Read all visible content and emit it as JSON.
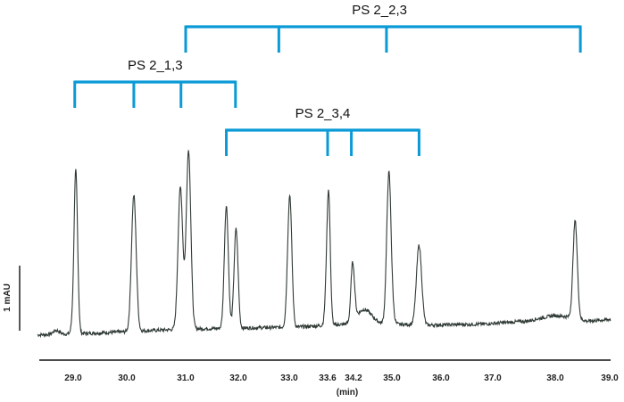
{
  "chart_data": {
    "type": "line",
    "title": "",
    "xlabel": "(min)",
    "ylabel": "",
    "xlim": [
      28.4,
      39.0
    ],
    "ylim": [
      0,
      1
    ],
    "grid": false,
    "x_ticks": [
      "29.0",
      "30.0",
      "31.0",
      "32.0",
      "33.0",
      "33.6",
      "34.2",
      "35.0",
      "36.0",
      "37.0",
      "38.0",
      "39.0"
    ],
    "x_tick_values": [
      28.97,
      30.01,
      31.01,
      31.93,
      32.86,
      33.6,
      34.2,
      34.98,
      35.83,
      36.71,
      37.82,
      38.97
    ],
    "scale_bar": {
      "label": "1 mAU"
    },
    "line_color": "#2f3a34",
    "bracket_color": "#0a9ad6",
    "baseline": [
      [
        28.4,
        0.02
      ],
      [
        29.5,
        0.03
      ],
      [
        31.0,
        0.05
      ],
      [
        33.0,
        0.06
      ],
      [
        34.4,
        0.08
      ],
      [
        35.6,
        0.07
      ],
      [
        36.5,
        0.075
      ],
      [
        37.3,
        0.09
      ],
      [
        37.8,
        0.12
      ],
      [
        38.2,
        0.11
      ],
      [
        38.5,
        0.09
      ],
      [
        39.0,
        0.1
      ]
    ],
    "peaks": [
      {
        "x": 28.7,
        "h": 0.02,
        "w": 0.05
      },
      {
        "x": 29.02,
        "h": 0.84,
        "w": 0.035
      },
      {
        "x": 30.13,
        "h": 0.7,
        "w": 0.04
      },
      {
        "x": 30.92,
        "h": 0.73,
        "w": 0.04
      },
      {
        "x": 31.06,
        "h": 0.92,
        "w": 0.04
      },
      {
        "x": 31.72,
        "h": 0.63,
        "w": 0.035
      },
      {
        "x": 31.89,
        "h": 0.51,
        "w": 0.035
      },
      {
        "x": 32.87,
        "h": 0.68,
        "w": 0.04
      },
      {
        "x": 33.62,
        "h": 0.7,
        "w": 0.04
      },
      {
        "x": 34.18,
        "h": 0.3,
        "w": 0.04
      },
      {
        "x": 34.42,
        "h": 0.07,
        "w": 0.15
      },
      {
        "x": 34.92,
        "h": 0.78,
        "w": 0.045
      },
      {
        "x": 35.45,
        "h": 0.41,
        "w": 0.045
      },
      {
        "x": 38.24,
        "h": 0.5,
        "w": 0.045
      }
    ],
    "brackets": [
      {
        "label": "PS 2_2,3",
        "level": 2,
        "span": [
          31.01,
          38.35
        ],
        "ticks": [
          31.01,
          32.67,
          34.87,
          38.35
        ]
      },
      {
        "label": "PS 2_1,3",
        "level": 1,
        "span": [
          29.0,
          31.88
        ],
        "ticks": [
          29.0,
          30.13,
          30.93,
          31.88
        ]
      },
      {
        "label": "PS 2_3,4",
        "level": 0,
        "span": [
          31.72,
          35.45
        ],
        "ticks": [
          31.72,
          33.6,
          34.15,
          35.45
        ]
      }
    ]
  }
}
